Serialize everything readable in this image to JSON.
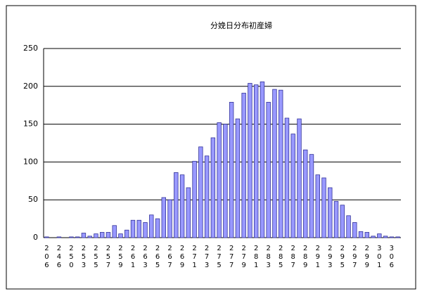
{
  "chart_data": {
    "type": "bar",
    "title": "分娩日分布初産婦",
    "categories": [
      "206",
      null,
      "246",
      null,
      "250",
      null,
      "253",
      null,
      "255",
      null,
      "257",
      null,
      "259",
      null,
      "261",
      null,
      "263",
      null,
      "265",
      null,
      "267",
      null,
      "269",
      null,
      "271",
      null,
      "273",
      null,
      "275",
      null,
      "277",
      null,
      "279",
      null,
      "281",
      null,
      "283",
      null,
      "285",
      null,
      "287",
      null,
      "289",
      null,
      "291",
      null,
      "293",
      null,
      "295",
      null,
      "297",
      null,
      "299",
      null,
      "301",
      null,
      "306",
      null
    ],
    "values": [
      1,
      0,
      1,
      0,
      1,
      1,
      6,
      2,
      5,
      7,
      7,
      16,
      5,
      10,
      23,
      23,
      20,
      30,
      25,
      53,
      50,
      86,
      83,
      66,
      101,
      120,
      108,
      132,
      152,
      150,
      179,
      157,
      191,
      204,
      202,
      206,
      179,
      196,
      195,
      158,
      137,
      157,
      116,
      110,
      83,
      79,
      66,
      48,
      43,
      29,
      20,
      8,
      7,
      2,
      5,
      2,
      1,
      1
    ],
    "color": "#9999ff",
    "ylim": [
      0,
      250
    ],
    "yticks": [
      0,
      50,
      100,
      150,
      200,
      250
    ],
    "grid": true
  }
}
